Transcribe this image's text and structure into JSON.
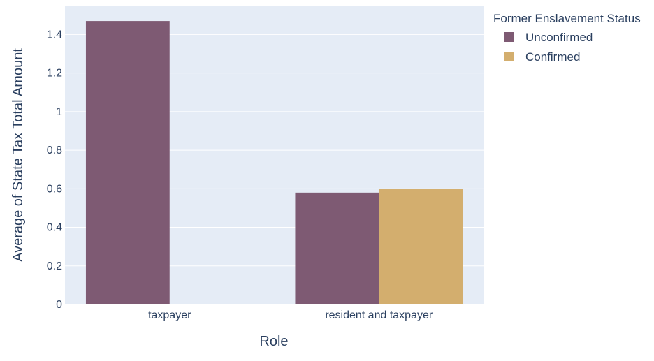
{
  "chart_data": {
    "type": "bar",
    "barmode": "group",
    "categories": [
      "taxpayer",
      "resident and taxpayer"
    ],
    "series": [
      {
        "name": "Unconfirmed",
        "color": "#7e5a73",
        "values": [
          1.47,
          0.58
        ]
      },
      {
        "name": "Confirmed",
        "color": "#d3ae6e",
        "values": [
          null,
          0.6
        ]
      }
    ],
    "xlabel": "Role",
    "ylabel": "Average of State Tax Total Amount",
    "ylim": [
      0,
      1.55
    ],
    "yticks": [
      0,
      0.2,
      0.4,
      0.6,
      0.8,
      1,
      1.2,
      1.4
    ],
    "ytick_labels": [
      "0",
      "0.2",
      "0.4",
      "0.6",
      "0.8",
      "1",
      "1.2",
      "1.4"
    ],
    "legend_title": "Former Enslavement Status",
    "legend_position": "right",
    "grid": true,
    "plot_bgcolor": "#e5ecf6",
    "gridcolor": "#ffffff",
    "textcolor": "#2a3f5f"
  }
}
